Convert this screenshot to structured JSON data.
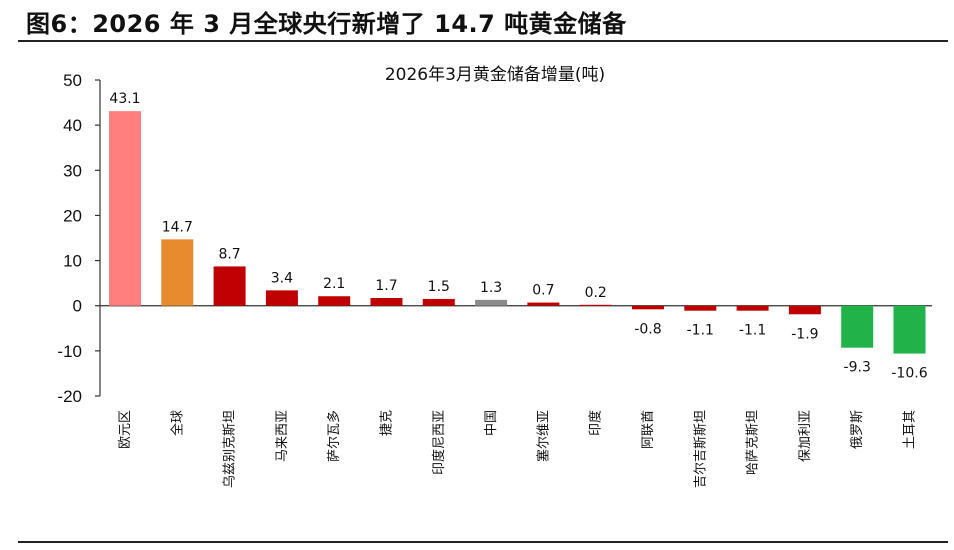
{
  "figure": {
    "title": "图6：2026 年 3 月全球央行新增了 14.7 吨黄金储备"
  },
  "chart_data": {
    "type": "bar",
    "title": "2026年3月黄金储备增量(吨)",
    "categories": [
      "欧元区",
      "全球",
      "乌兹别克斯坦",
      "马来西亚",
      "萨尔瓦多",
      "捷克",
      "印度尼西亚",
      "中国",
      "塞尔维亚",
      "印度",
      "阿联酋",
      "吉尔吉斯斯坦",
      "哈萨克斯坦",
      "保加利亚",
      "俄罗斯",
      "土耳其"
    ],
    "values": [
      43.1,
      14.7,
      8.7,
      3.4,
      2.1,
      1.7,
      1.5,
      1.3,
      0.7,
      0.2,
      -0.8,
      -1.1,
      -1.1,
      -1.9,
      -9.3,
      -10.6
    ],
    "value_labels": [
      "43.1",
      "14.7",
      "8.7",
      "3.4",
      "2.1",
      "1.7",
      "1.5",
      "1.3",
      "0.7",
      "0.2",
      "-0.8",
      "-1.1",
      "-1.1",
      "-1.9",
      "-9.3",
      "-10.6"
    ],
    "colors": [
      "#ff7f7f",
      "#e88a2e",
      "#c00000",
      "#c00000",
      "#c00000",
      "#c00000",
      "#c00000",
      "#8c8c8c",
      "#c00000",
      "#c00000",
      "#c00000",
      "#c00000",
      "#c00000",
      "#c00000",
      "#21b34a",
      "#21b34a"
    ],
    "ylim": [
      -20,
      50
    ],
    "yticks": [
      50,
      40,
      30,
      20,
      10,
      0,
      -10,
      -20
    ],
    "ytick_labels": [
      "50",
      "40",
      "30",
      "20",
      "10",
      "0",
      "-10",
      "-20"
    ],
    "grid": false,
    "legend": "none"
  }
}
